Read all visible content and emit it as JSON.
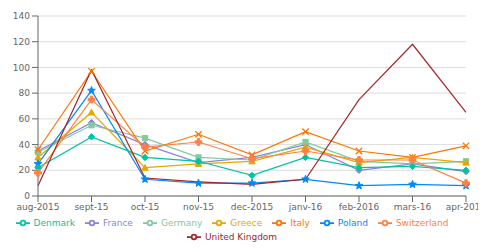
{
  "chart_data": {
    "type": "line",
    "categories": [
      "aug-2015",
      "sept-15",
      "oct-15",
      "nov-15",
      "dec-2015",
      "janv-16",
      "feb-2016",
      "mars-16",
      "apr-2016"
    ],
    "series": [
      {
        "name": "France",
        "color": "#8884d8",
        "marker": "diamond",
        "values": [
          35,
          57,
          40,
          26,
          30,
          40,
          20,
          25,
          19
        ]
      },
      {
        "name": "Germany",
        "color": "#82ca9d",
        "marker": "square",
        "values": [
          34,
          55,
          45,
          30,
          28,
          42,
          27,
          25,
          27
        ]
      },
      {
        "name": "Greece",
        "color": "#e6a700",
        "marker": "triangle",
        "values": [
          30,
          65,
          22,
          25,
          27,
          38,
          26,
          30,
          26
        ]
      },
      {
        "name": "Italy",
        "color": "#ff7300",
        "marker": "x",
        "values": [
          36,
          97,
          35,
          48,
          32,
          50,
          35,
          30,
          39
        ]
      },
      {
        "name": "Poland",
        "color": "#0088fe",
        "marker": "star",
        "values": [
          25,
          82,
          13,
          10,
          10,
          13,
          8,
          9,
          8
        ]
      },
      {
        "name": "Denmark",
        "color": "#00c49f",
        "marker": "diamond",
        "values": [
          22,
          46,
          30,
          27,
          16,
          30,
          22,
          23,
          20
        ]
      },
      {
        "name": "Switzerland",
        "color": "#ff8042",
        "marker": "plus",
        "values": [
          18,
          75,
          38,
          42,
          29,
          35,
          28,
          28,
          10
        ]
      },
      {
        "name": "United Kingdom",
        "color": "#a4262c",
        "marker": "none",
        "values": [
          8,
          98,
          14,
          11,
          9,
          13,
          75,
          118,
          65
        ]
      }
    ],
    "ylim": [
      0,
      140
    ],
    "yticks": [
      0,
      20,
      40,
      60,
      80,
      100,
      120,
      140
    ],
    "grid": true,
    "legend": "bottom"
  }
}
